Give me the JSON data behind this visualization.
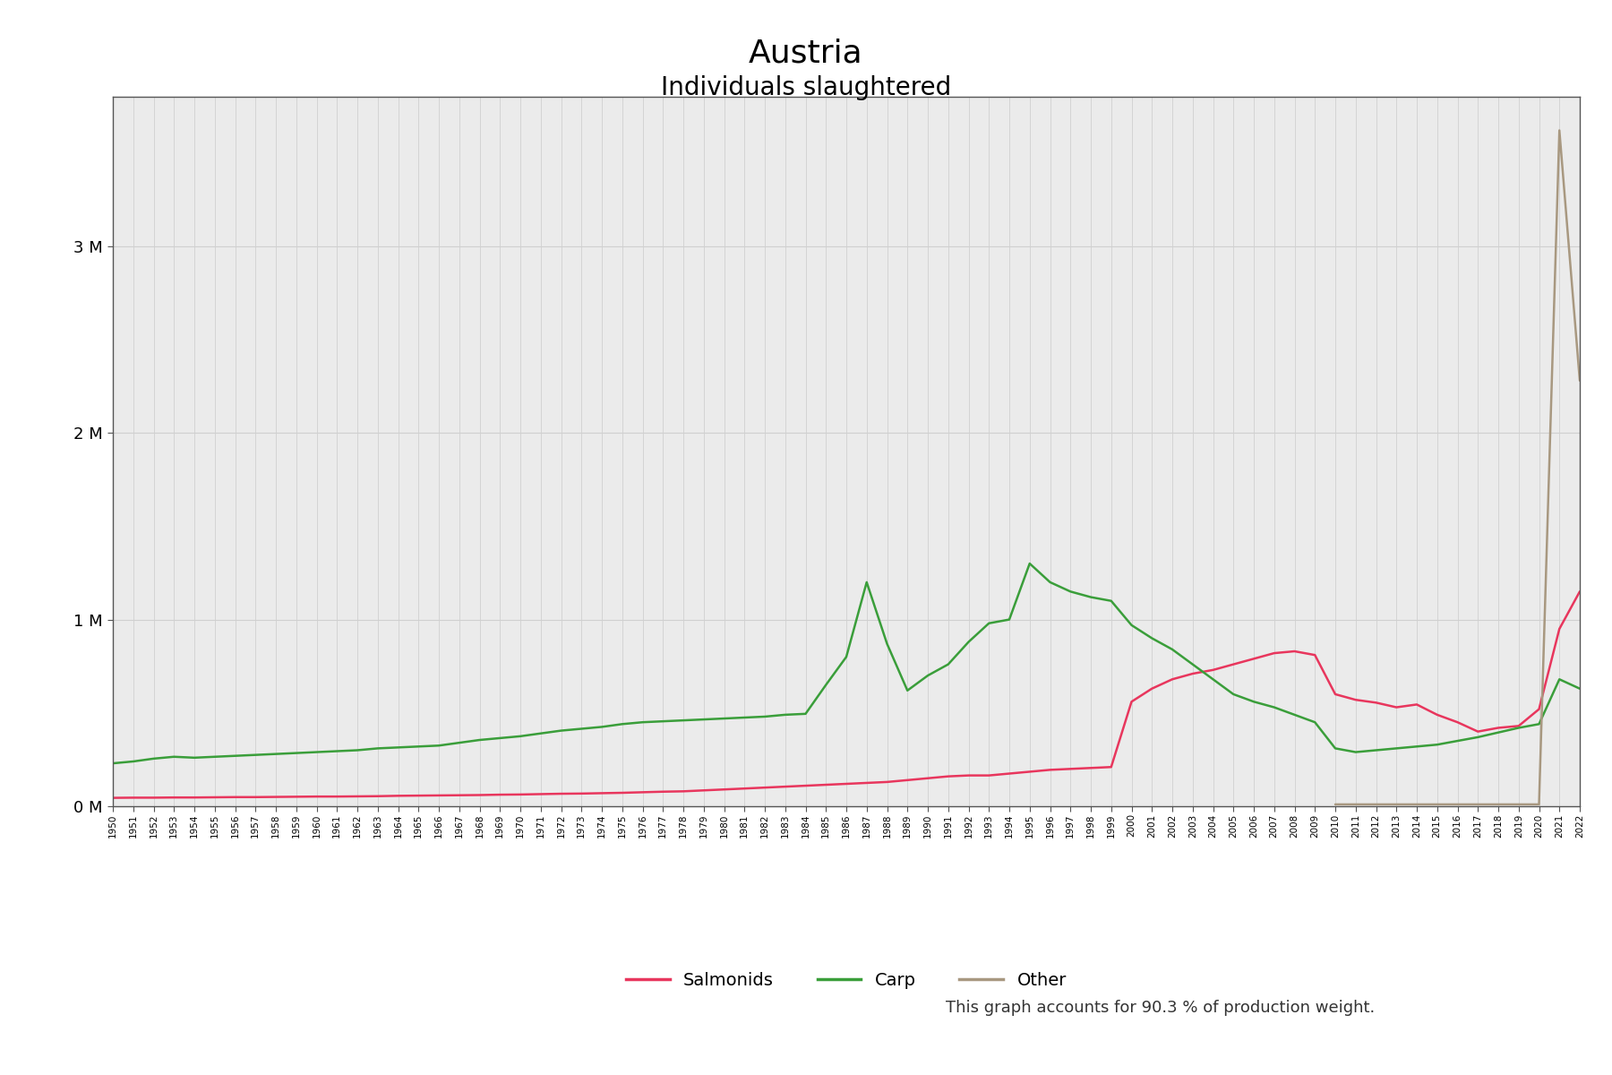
{
  "title": "Austria",
  "subtitle": "Individuals slaughtered",
  "footer": "This graph accounts for 90.3 % of production weight.",
  "title_fontsize": 26,
  "subtitle_fontsize": 20,
  "footer_fontsize": 13,
  "bg_color": "#ffffff",
  "plot_bg_color": "#ebebeb",
  "series": {
    "Salmonids": {
      "color": "#e8365d",
      "linewidth": 1.8,
      "data": {
        "1950": 45000,
        "1951": 46000,
        "1952": 46000,
        "1953": 47000,
        "1954": 47000,
        "1955": 48000,
        "1956": 49000,
        "1957": 49000,
        "1958": 50000,
        "1959": 51000,
        "1960": 52000,
        "1961": 52000,
        "1962": 53000,
        "1963": 54000,
        "1964": 56000,
        "1965": 57000,
        "1966": 58000,
        "1967": 59000,
        "1968": 60000,
        "1969": 62000,
        "1970": 63000,
        "1971": 65000,
        "1972": 67000,
        "1973": 68000,
        "1974": 70000,
        "1975": 72000,
        "1976": 75000,
        "1977": 78000,
        "1978": 80000,
        "1979": 85000,
        "1980": 90000,
        "1981": 95000,
        "1982": 100000,
        "1983": 105000,
        "1984": 110000,
        "1985": 115000,
        "1986": 120000,
        "1987": 125000,
        "1988": 130000,
        "1989": 140000,
        "1990": 150000,
        "1991": 160000,
        "1992": 165000,
        "1993": 165000,
        "1994": 175000,
        "1995": 185000,
        "1996": 195000,
        "1997": 200000,
        "1998": 205000,
        "1999": 210000,
        "2000": 560000,
        "2001": 630000,
        "2002": 680000,
        "2003": 710000,
        "2004": 730000,
        "2005": 760000,
        "2006": 790000,
        "2007": 820000,
        "2008": 830000,
        "2009": 810000,
        "2010": 600000,
        "2011": 570000,
        "2012": 555000,
        "2013": 530000,
        "2014": 545000,
        "2015": 490000,
        "2016": 450000,
        "2017": 400000,
        "2018": 420000,
        "2019": 430000,
        "2020": 520000,
        "2021": 950000,
        "2022": 1150000
      }
    },
    "Carp": {
      "color": "#3a9e3a",
      "linewidth": 1.8,
      "data": {
        "1950": 230000,
        "1951": 240000,
        "1952": 255000,
        "1953": 265000,
        "1954": 260000,
        "1955": 265000,
        "1956": 270000,
        "1957": 275000,
        "1958": 280000,
        "1959": 285000,
        "1960": 290000,
        "1961": 295000,
        "1962": 300000,
        "1963": 310000,
        "1964": 315000,
        "1965": 320000,
        "1966": 325000,
        "1967": 340000,
        "1968": 355000,
        "1969": 365000,
        "1970": 375000,
        "1971": 390000,
        "1972": 405000,
        "1973": 415000,
        "1974": 425000,
        "1975": 440000,
        "1976": 450000,
        "1977": 455000,
        "1978": 460000,
        "1979": 465000,
        "1980": 470000,
        "1981": 475000,
        "1982": 480000,
        "1983": 490000,
        "1984": 495000,
        "1985": 650000,
        "1986": 800000,
        "1987": 1200000,
        "1988": 870000,
        "1989": 620000,
        "1990": 700000,
        "1991": 760000,
        "1992": 880000,
        "1993": 980000,
        "1994": 1000000,
        "1995": 1300000,
        "1996": 1200000,
        "1997": 1150000,
        "1998": 1120000,
        "1999": 1100000,
        "2000": 970000,
        "2001": 900000,
        "2002": 840000,
        "2003": 760000,
        "2004": 680000,
        "2005": 600000,
        "2006": 560000,
        "2007": 530000,
        "2008": 490000,
        "2009": 450000,
        "2010": 310000,
        "2011": 290000,
        "2012": 300000,
        "2013": 310000,
        "2014": 320000,
        "2015": 330000,
        "2016": 350000,
        "2017": 370000,
        "2018": 395000,
        "2019": 420000,
        "2020": 440000,
        "2021": 680000,
        "2022": 630000
      }
    },
    "Other": {
      "color": "#a89880",
      "linewidth": 1.8,
      "data": {
        "2010": 10000,
        "2011": 10000,
        "2012": 10000,
        "2013": 10000,
        "2014": 10000,
        "2015": 10000,
        "2016": 10000,
        "2017": 10000,
        "2018": 10000,
        "2019": 10000,
        "2020": 10000,
        "2021": 3620000,
        "2022": 2280000
      }
    }
  },
  "ylim": [
    0,
    3800000
  ],
  "yticks": [
    0,
    1000000,
    2000000,
    3000000
  ],
  "ytick_labels": [
    "0 M",
    "1 M",
    "2 M",
    "3 M"
  ],
  "legend_items": [
    "Salmonids",
    "Carp",
    "Other"
  ],
  "legend_colors": [
    "#e8365d",
    "#3a9e3a",
    "#a89880"
  ],
  "year_start": 1950,
  "year_end": 2022
}
